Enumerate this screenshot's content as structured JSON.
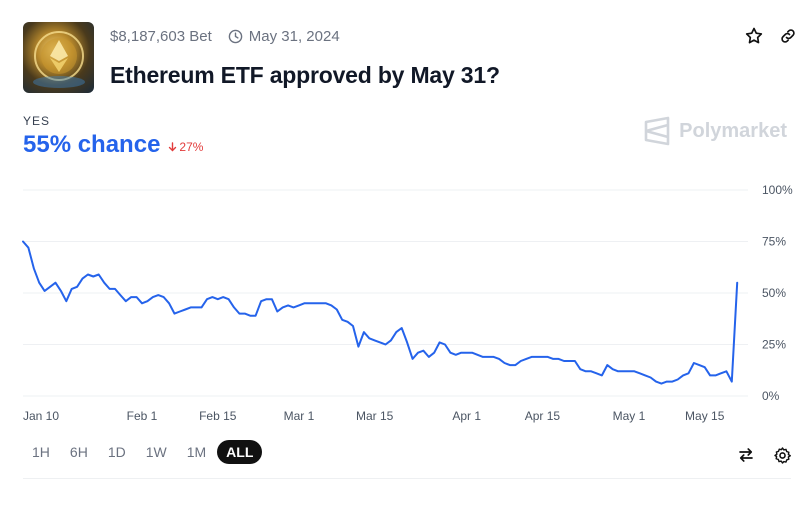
{
  "market": {
    "volume": "$8,187,603 Bet",
    "end_date": "May 31, 2024",
    "title": "Ethereum ETF approved by May 31?",
    "outcome_label": "YES",
    "chance": "55% chance",
    "delta": "27%",
    "watermark": "Polymarket"
  },
  "time_ranges": [
    "1H",
    "6H",
    "1D",
    "1W",
    "1M",
    "ALL"
  ],
  "active_range": "ALL",
  "colors": {
    "line": "#2563eb",
    "delta": "#e23b3b",
    "active_range_bg": "#111111"
  },
  "icons": [
    "calendar-clock-icon",
    "star-icon",
    "link-icon",
    "polymarket-logo-icon",
    "swap-icon",
    "settings-icon"
  ],
  "chart_data": {
    "type": "line",
    "x_type": "date",
    "x_ticks": [
      {
        "date": "2024-01-10",
        "label": "Jan 10"
      },
      {
        "date": "2024-02-01",
        "label": "Feb 1"
      },
      {
        "date": "2024-02-15",
        "label": "Feb 15"
      },
      {
        "date": "2024-03-01",
        "label": "Mar 1"
      },
      {
        "date": "2024-03-15",
        "label": "Mar 15"
      },
      {
        "date": "2024-04-01",
        "label": "Apr 1"
      },
      {
        "date": "2024-04-15",
        "label": "Apr 15"
      },
      {
        "date": "2024-05-01",
        "label": "May 1"
      },
      {
        "date": "2024-05-15",
        "label": "May 15"
      }
    ],
    "y_ticks": [
      {
        "value": 100,
        "label": "100%"
      },
      {
        "value": 75,
        "label": "75%"
      },
      {
        "value": 50,
        "label": "50%"
      },
      {
        "value": 25,
        "label": "25%"
      },
      {
        "value": 0,
        "label": "0%"
      }
    ],
    "xlim": [
      "2024-01-10",
      "2024-05-23"
    ],
    "ylim": [
      0,
      100
    ],
    "grid": true,
    "series": [
      {
        "values": [
          [
            "2024-01-10",
            75
          ],
          [
            "2024-01-11",
            72
          ],
          [
            "2024-01-12",
            62
          ],
          [
            "2024-01-13",
            55
          ],
          [
            "2024-01-14",
            51
          ],
          [
            "2024-01-15",
            53
          ],
          [
            "2024-01-16",
            55
          ],
          [
            "2024-01-17",
            51
          ],
          [
            "2024-01-18",
            46
          ],
          [
            "2024-01-19",
            52
          ],
          [
            "2024-01-20",
            53
          ],
          [
            "2024-01-21",
            57
          ],
          [
            "2024-01-22",
            59
          ],
          [
            "2024-01-23",
            58
          ],
          [
            "2024-01-24",
            59
          ],
          [
            "2024-01-25",
            55
          ],
          [
            "2024-01-26",
            52
          ],
          [
            "2024-01-27",
            52
          ],
          [
            "2024-01-28",
            49
          ],
          [
            "2024-01-29",
            46
          ],
          [
            "2024-01-30",
            48
          ],
          [
            "2024-01-31",
            48
          ],
          [
            "2024-02-01",
            45
          ],
          [
            "2024-02-02",
            46
          ],
          [
            "2024-02-03",
            48
          ],
          [
            "2024-02-04",
            49
          ],
          [
            "2024-02-05",
            48
          ],
          [
            "2024-02-06",
            45
          ],
          [
            "2024-02-07",
            40
          ],
          [
            "2024-02-08",
            41
          ],
          [
            "2024-02-09",
            42
          ],
          [
            "2024-02-10",
            43
          ],
          [
            "2024-02-11",
            43
          ],
          [
            "2024-02-12",
            43
          ],
          [
            "2024-02-13",
            47
          ],
          [
            "2024-02-14",
            48
          ],
          [
            "2024-02-15",
            47
          ],
          [
            "2024-02-16",
            48
          ],
          [
            "2024-02-17",
            47
          ],
          [
            "2024-02-18",
            43
          ],
          [
            "2024-02-19",
            40
          ],
          [
            "2024-02-20",
            40
          ],
          [
            "2024-02-21",
            39
          ],
          [
            "2024-02-22",
            39
          ],
          [
            "2024-02-23",
            46
          ],
          [
            "2024-02-24",
            47
          ],
          [
            "2024-02-25",
            47
          ],
          [
            "2024-02-26",
            41
          ],
          [
            "2024-02-27",
            43
          ],
          [
            "2024-02-28",
            44
          ],
          [
            "2024-02-29",
            43
          ],
          [
            "2024-03-01",
            44
          ],
          [
            "2024-03-02",
            45
          ],
          [
            "2024-03-03",
            45
          ],
          [
            "2024-03-04",
            45
          ],
          [
            "2024-03-05",
            45
          ],
          [
            "2024-03-06",
            45
          ],
          [
            "2024-03-07",
            44
          ],
          [
            "2024-03-08",
            42
          ],
          [
            "2024-03-09",
            37
          ],
          [
            "2024-03-10",
            36
          ],
          [
            "2024-03-11",
            34
          ],
          [
            "2024-03-12",
            24
          ],
          [
            "2024-03-13",
            31
          ],
          [
            "2024-03-14",
            28
          ],
          [
            "2024-03-15",
            27
          ],
          [
            "2024-03-16",
            26
          ],
          [
            "2024-03-17",
            25
          ],
          [
            "2024-03-18",
            27
          ],
          [
            "2024-03-19",
            31
          ],
          [
            "2024-03-20",
            33
          ],
          [
            "2024-03-21",
            26
          ],
          [
            "2024-03-22",
            18
          ],
          [
            "2024-03-23",
            21
          ],
          [
            "2024-03-24",
            22
          ],
          [
            "2024-03-25",
            19
          ],
          [
            "2024-03-26",
            21
          ],
          [
            "2024-03-27",
            26
          ],
          [
            "2024-03-28",
            25
          ],
          [
            "2024-03-29",
            21
          ],
          [
            "2024-03-30",
            20
          ],
          [
            "2024-03-31",
            21
          ],
          [
            "2024-04-01",
            21
          ],
          [
            "2024-04-02",
            21
          ],
          [
            "2024-04-03",
            20
          ],
          [
            "2024-04-04",
            19
          ],
          [
            "2024-04-05",
            19
          ],
          [
            "2024-04-06",
            19
          ],
          [
            "2024-04-07",
            18
          ],
          [
            "2024-04-08",
            16
          ],
          [
            "2024-04-09",
            15
          ],
          [
            "2024-04-10",
            15
          ],
          [
            "2024-04-11",
            17
          ],
          [
            "2024-04-12",
            18
          ],
          [
            "2024-04-13",
            19
          ],
          [
            "2024-04-14",
            19
          ],
          [
            "2024-04-15",
            19
          ],
          [
            "2024-04-16",
            19
          ],
          [
            "2024-04-17",
            18
          ],
          [
            "2024-04-18",
            18
          ],
          [
            "2024-04-19",
            17
          ],
          [
            "2024-04-20",
            17
          ],
          [
            "2024-04-21",
            17
          ],
          [
            "2024-04-22",
            13
          ],
          [
            "2024-04-23",
            12
          ],
          [
            "2024-04-24",
            12
          ],
          [
            "2024-04-25",
            11
          ],
          [
            "2024-04-26",
            10
          ],
          [
            "2024-04-27",
            15
          ],
          [
            "2024-04-28",
            13
          ],
          [
            "2024-04-29",
            12
          ],
          [
            "2024-04-30",
            12
          ],
          [
            "2024-05-01",
            12
          ],
          [
            "2024-05-02",
            12
          ],
          [
            "2024-05-03",
            11
          ],
          [
            "2024-05-04",
            10
          ],
          [
            "2024-05-05",
            9
          ],
          [
            "2024-05-06",
            7
          ],
          [
            "2024-05-07",
            6
          ],
          [
            "2024-05-08",
            7
          ],
          [
            "2024-05-09",
            7
          ],
          [
            "2024-05-10",
            8
          ],
          [
            "2024-05-11",
            10
          ],
          [
            "2024-05-12",
            11
          ],
          [
            "2024-05-13",
            16
          ],
          [
            "2024-05-14",
            15
          ],
          [
            "2024-05-15",
            14
          ],
          [
            "2024-05-16",
            10
          ],
          [
            "2024-05-17",
            10
          ],
          [
            "2024-05-18",
            11
          ],
          [
            "2024-05-19",
            12
          ],
          [
            "2024-05-20",
            7
          ],
          [
            "2024-05-21",
            55
          ]
        ]
      }
    ]
  }
}
